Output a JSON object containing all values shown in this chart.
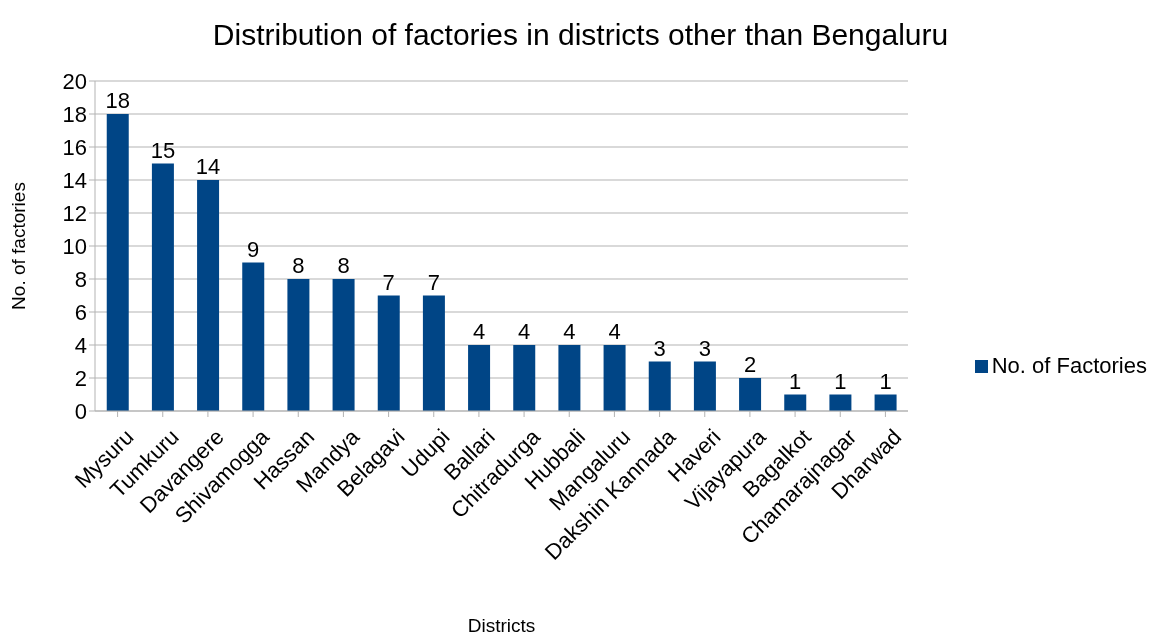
{
  "chart_data": {
    "type": "bar",
    "title": "Distribution of factories in districts other than Bengaluru",
    "xlabel": "Districts",
    "ylabel": "No. of factories",
    "categories": [
      "Mysuru",
      "Tumkuru",
      "Davangere",
      "Shivamogga",
      "Hassan",
      "Mandya",
      "Belagavi",
      "Udupi",
      "Ballari",
      "Chitradurga",
      "Hubbali",
      "Mangaluru",
      "Dakshin Kannada",
      "Haveri",
      "Vijayapura",
      "Bagalkot",
      "Chamarajnagar",
      "Dharwad"
    ],
    "series": [
      {
        "name": "No. of Factories",
        "color": "#004586",
        "values": [
          18,
          15,
          14,
          9,
          8,
          8,
          7,
          7,
          4,
          4,
          4,
          4,
          3,
          3,
          2,
          1,
          1,
          1
        ]
      }
    ],
    "ylim": [
      0,
      20
    ],
    "yticks": [
      0,
      2,
      4,
      6,
      8,
      10,
      12,
      14,
      16,
      18,
      20
    ],
    "grid": "y",
    "legend": "right",
    "data_labels": true
  }
}
